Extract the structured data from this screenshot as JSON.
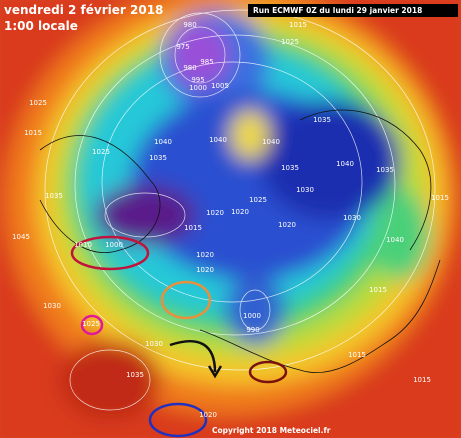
{
  "header": {
    "date": "vendredi 2 février 2018",
    "time": "1:00 locale",
    "run": "Run ECMWF 0Z du lundi 29 janvier 2018"
  },
  "footer": {
    "copyright": "Copyright 2018 Meteociel.fr"
  },
  "pressure_labels": [
    "980",
    "975",
    "980",
    "985",
    "995",
    "1000",
    "1005",
    "1015",
    "1025",
    "1025",
    "1015",
    "1025",
    "1040",
    "1035",
    "1040",
    "1040",
    "1035",
    "1040",
    "1035",
    "1030",
    "1025",
    "1020",
    "1020",
    "1015",
    "1020",
    "1020",
    "1010",
    "1000",
    "1030",
    "1025",
    "1030",
    "1035",
    "1000",
    "990",
    "1020",
    "1045",
    "1035",
    "1030",
    "1035",
    "1015",
    "1015",
    "1020",
    "1015",
    "1040",
    "1015"
  ]
}
